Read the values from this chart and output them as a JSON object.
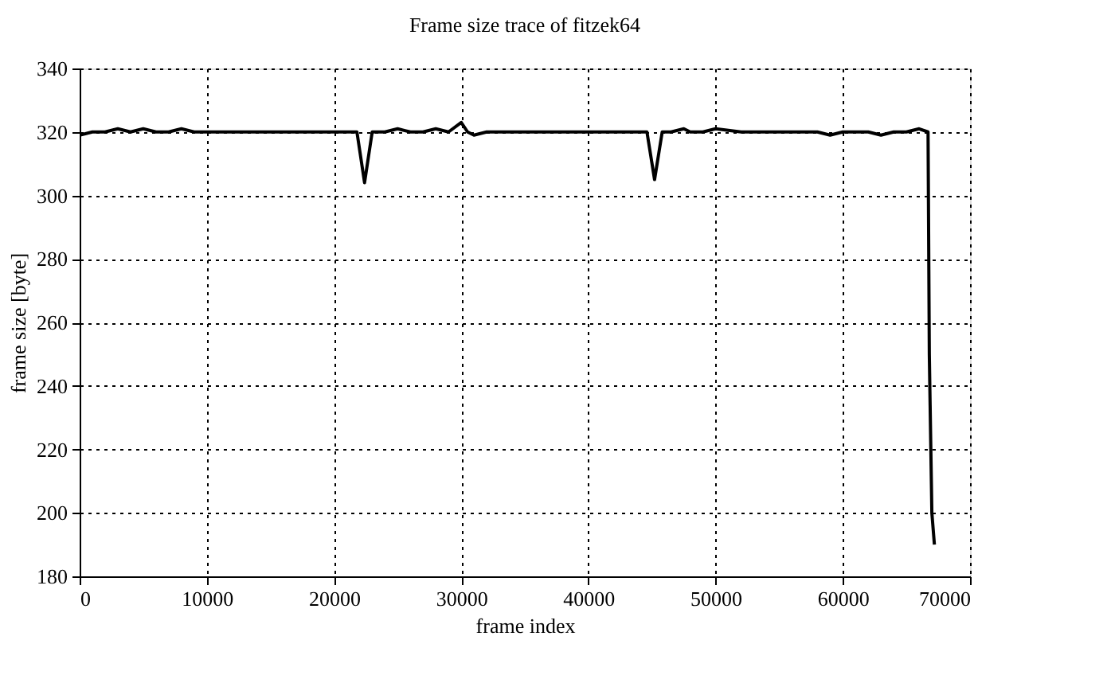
{
  "chart_data": {
    "type": "line",
    "title": "Frame size trace of fitzek64",
    "xlabel": "frame index",
    "ylabel": "frame size [byte]",
    "x": [
      0,
      1000,
      2000,
      3000,
      4000,
      5000,
      6000,
      7000,
      8000,
      9000,
      10000,
      12000,
      14000,
      16000,
      18000,
      20000,
      21000,
      21800,
      22400,
      23000,
      24000,
      25000,
      26000,
      27000,
      28000,
      29000,
      30000,
      30500,
      31000,
      32000,
      34000,
      36000,
      38000,
      40000,
      42000,
      43000,
      44000,
      44600,
      45200,
      45800,
      46500,
      47500,
      48000,
      49000,
      50000,
      52000,
      54000,
      56000,
      57000,
      58000,
      59000,
      60000,
      61000,
      62000,
      63000,
      64000,
      65000,
      66000,
      66700,
      66800,
      67000,
      67200
    ],
    "series": [
      {
        "color": "#000000",
        "values": [
          319,
          320,
          320,
          321,
          320,
          321,
          320,
          320,
          321,
          320,
          320,
          320,
          320,
          320,
          320,
          320,
          320,
          320,
          304,
          320,
          320,
          321,
          320,
          320,
          321,
          320,
          323,
          320,
          319,
          320,
          320,
          320,
          320,
          320,
          320,
          320,
          320,
          320,
          305,
          320,
          320,
          321,
          320,
          320,
          321,
          320,
          320,
          320,
          320,
          320,
          319,
          320,
          320,
          320,
          319,
          320,
          320,
          321,
          320,
          250,
          200,
          190
        ]
      }
    ],
    "xlim": [
      0,
      70000
    ],
    "ylim": [
      180,
      340
    ],
    "xticks": [
      0,
      10000,
      20000,
      30000,
      40000,
      50000,
      60000,
      70000
    ],
    "yticks": [
      180,
      200,
      220,
      240,
      260,
      280,
      300,
      320,
      340
    ],
    "grid": true,
    "marker": "none",
    "line_style": "solid"
  }
}
